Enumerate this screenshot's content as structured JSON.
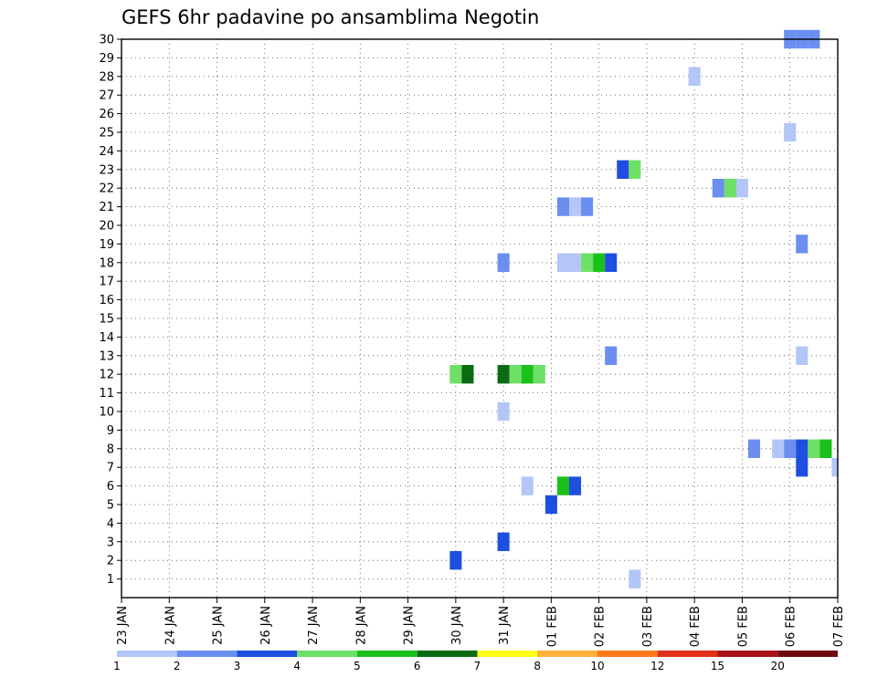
{
  "chart_data": {
    "type": "heatmap",
    "title": "GEFS 6hr padavine po ansamblima Negotin",
    "y_ticks": [
      "1",
      "2",
      "3",
      "4",
      "5",
      "6",
      "7",
      "8",
      "9",
      "10",
      "11",
      "12",
      "13",
      "14",
      "15",
      "16",
      "17",
      "18",
      "19",
      "20",
      "21",
      "22",
      "23",
      "24",
      "25",
      "26",
      "27",
      "28",
      "29",
      "30"
    ],
    "x_ticks": [
      "23 JAN",
      "24 JAN",
      "25 JAN",
      "26 JAN",
      "27 JAN",
      "28 JAN",
      "29 JAN",
      "30 JAN",
      "31 JAN",
      "01 FEB",
      "02 FEB",
      "03 FEB",
      "04 FEB",
      "05 FEB",
      "06 FEB",
      "07 FEB"
    ],
    "x_range_days": [
      0,
      15
    ],
    "y_range": [
      0,
      30
    ],
    "grid": true,
    "colorbar": {
      "labels": [
        "1",
        "2",
        "3",
        "4",
        "5",
        "6",
        "7",
        "8",
        "10",
        "12",
        "15",
        "20"
      ],
      "colors": [
        "#b3c6f7",
        "#6b8ef0",
        "#1f4fe0",
        "#6ee068",
        "#19c11a",
        "#0b6b12",
        "#ffff1a",
        "#ffb13a",
        "#ff7a1a",
        "#e03218",
        "#a8141a",
        "#6e0a10"
      ]
    },
    "cells": [
      {
        "member": 1,
        "day": 10.75,
        "color": "#b3c6f7"
      },
      {
        "member": 2,
        "day": 7.0,
        "color": "#1f4fe0"
      },
      {
        "member": 3,
        "day": 8.0,
        "color": "#1f4fe0"
      },
      {
        "member": 5,
        "day": 9.0,
        "color": "#1f4fe0"
      },
      {
        "member": 6,
        "day": 8.5,
        "color": "#b3c6f7"
      },
      {
        "member": 6,
        "day": 9.25,
        "color": "#19c11a"
      },
      {
        "member": 6,
        "day": 9.5,
        "color": "#1f4fe0"
      },
      {
        "member": 7,
        "day": 14.25,
        "color": "#1f4fe0"
      },
      {
        "member": 7,
        "day": 15.0,
        "color": "#b3c6f7"
      },
      {
        "member": 8,
        "day": 13.25,
        "color": "#6b8ef0"
      },
      {
        "member": 8,
        "day": 13.75,
        "color": "#b3c6f7"
      },
      {
        "member": 8,
        "day": 14.0,
        "color": "#6b8ef0"
      },
      {
        "member": 8,
        "day": 14.25,
        "color": "#1f4fe0"
      },
      {
        "member": 8,
        "day": 14.5,
        "color": "#6ee068"
      },
      {
        "member": 8,
        "day": 14.75,
        "color": "#19c11a"
      },
      {
        "member": 10,
        "day": 8.0,
        "color": "#b3c6f7"
      },
      {
        "member": 12,
        "day": 7.0,
        "color": "#6ee068"
      },
      {
        "member": 12,
        "day": 7.25,
        "color": "#0b6b12"
      },
      {
        "member": 12,
        "day": 8.0,
        "color": "#0b6b12"
      },
      {
        "member": 12,
        "day": 8.25,
        "color": "#6ee068"
      },
      {
        "member": 12,
        "day": 8.5,
        "color": "#19c11a"
      },
      {
        "member": 12,
        "day": 8.75,
        "color": "#6ee068"
      },
      {
        "member": 13,
        "day": 10.25,
        "color": "#6b8ef0"
      },
      {
        "member": 13,
        "day": 14.25,
        "color": "#b3c6f7"
      },
      {
        "member": 18,
        "day": 8.0,
        "color": "#6b8ef0"
      },
      {
        "member": 18,
        "day": 9.25,
        "color": "#b3c6f7"
      },
      {
        "member": 18,
        "day": 9.5,
        "color": "#b3c6f7"
      },
      {
        "member": 18,
        "day": 9.75,
        "color": "#6ee068"
      },
      {
        "member": 18,
        "day": 10.0,
        "color": "#19c11a"
      },
      {
        "member": 18,
        "day": 10.25,
        "color": "#1f4fe0"
      },
      {
        "member": 19,
        "day": 14.25,
        "color": "#6b8ef0"
      },
      {
        "member": 21,
        "day": 9.25,
        "color": "#6b8ef0"
      },
      {
        "member": 21,
        "day": 9.5,
        "color": "#b3c6f7"
      },
      {
        "member": 21,
        "day": 9.75,
        "color": "#6b8ef0"
      },
      {
        "member": 22,
        "day": 12.5,
        "color": "#6b8ef0"
      },
      {
        "member": 22,
        "day": 12.75,
        "color": "#6ee068"
      },
      {
        "member": 22,
        "day": 13.0,
        "color": "#b3c6f7"
      },
      {
        "member": 23,
        "day": 10.5,
        "color": "#1f4fe0"
      },
      {
        "member": 23,
        "day": 10.75,
        "color": "#6ee068"
      },
      {
        "member": 25,
        "day": 14.0,
        "color": "#b3c6f7"
      },
      {
        "member": 28,
        "day": 12.0,
        "color": "#b3c6f7"
      },
      {
        "member": 30,
        "day": 14.0,
        "color": "#6b8ef0"
      },
      {
        "member": 30,
        "day": 14.25,
        "color": "#6b8ef0"
      },
      {
        "member": 30,
        "day": 14.5,
        "color": "#6b8ef0"
      }
    ]
  }
}
